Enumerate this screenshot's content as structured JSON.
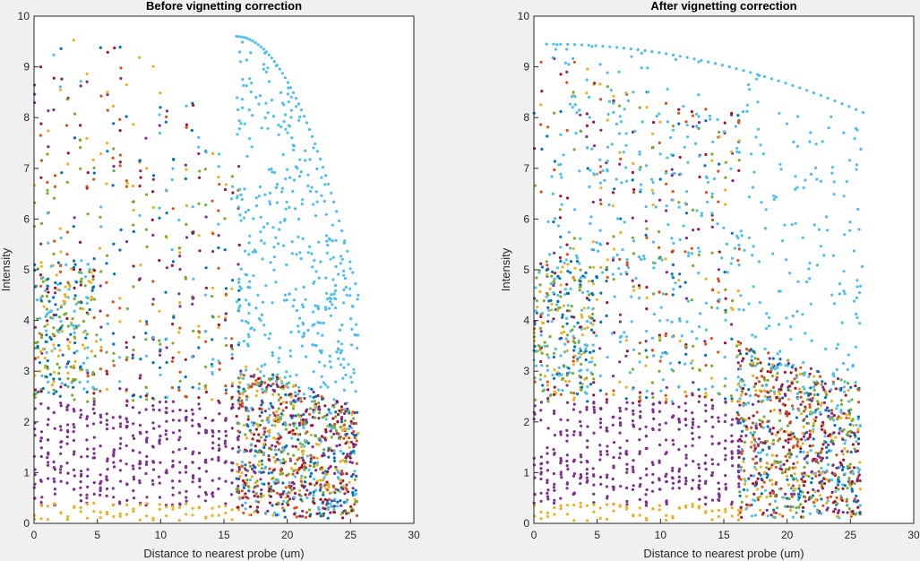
{
  "chart_data": [
    {
      "type": "scatter",
      "title": "Before vignetting correction",
      "xlabel": "Distance to nearest probe (um)",
      "ylabel": "Intensity",
      "xlim": [
        0,
        30
      ],
      "ylim": [
        0,
        10
      ],
      "xticks": [
        "0",
        "5",
        "10",
        "15",
        "20",
        "25",
        "30"
      ],
      "yticks": [
        "0",
        "1",
        "2",
        "3",
        "4",
        "5",
        "6",
        "7",
        "8",
        "9",
        "10"
      ],
      "grid": false,
      "series_colors": [
        "#0072BD",
        "#D95319",
        "#EDB120",
        "#7E2F8E",
        "#77AC30",
        "#4DBEEE",
        "#A2142F"
      ],
      "description_data": {
        "probe_columns_x_range": [
          0,
          16.2
        ],
        "bright_arc_x_range": [
          16,
          25.6
        ],
        "bright_arc_y_start_max": 9.6,
        "bright_arc_y_end": 4.5,
        "upper_envelope_y_at_x": [
          [
            0.5,
            9.5
          ],
          [
            4,
            9.6
          ],
          [
            8,
            9.4
          ],
          [
            12,
            8.6
          ],
          [
            16,
            7.2
          ]
        ],
        "dense_purple_band_y_max": 2.4,
        "tail_region_x_range": [
          16,
          25.6
        ],
        "tail_region_y_range": [
          0.1,
          3.2
        ]
      }
    },
    {
      "type": "scatter",
      "title": "After vignetting correction",
      "xlabel": "Distance to nearest probe (um)",
      "ylabel": "Intensity",
      "xlim": [
        0,
        30
      ],
      "ylim": [
        0,
        10
      ],
      "xticks": [
        "0",
        "5",
        "10",
        "15",
        "20",
        "25",
        "30"
      ],
      "yticks": [
        "0",
        "1",
        "2",
        "3",
        "4",
        "5",
        "6",
        "7",
        "8",
        "9",
        "10"
      ],
      "grid": false,
      "series_colors": [
        "#0072BD",
        "#D95319",
        "#EDB120",
        "#7E2F8E",
        "#77AC30",
        "#4DBEEE",
        "#A2142F"
      ],
      "description_data": {
        "probe_columns_x_range": [
          0,
          16.2
        ],
        "bright_arc_x_range": [
          1,
          26
        ],
        "bright_arc_y_start_max": 9.45,
        "bright_arc_y_end": 8.1,
        "upper_envelope_y_at_x": [
          [
            0.5,
            9.4
          ],
          [
            4,
            9.0
          ],
          [
            8,
            8.6
          ],
          [
            12,
            8.5
          ],
          [
            16,
            8.1
          ]
        ],
        "dense_purple_band_y_max": 2.4,
        "tail_region_x_range": [
          16,
          25.8
        ],
        "tail_region_y_range": [
          0.1,
          3.6
        ]
      }
    }
  ]
}
